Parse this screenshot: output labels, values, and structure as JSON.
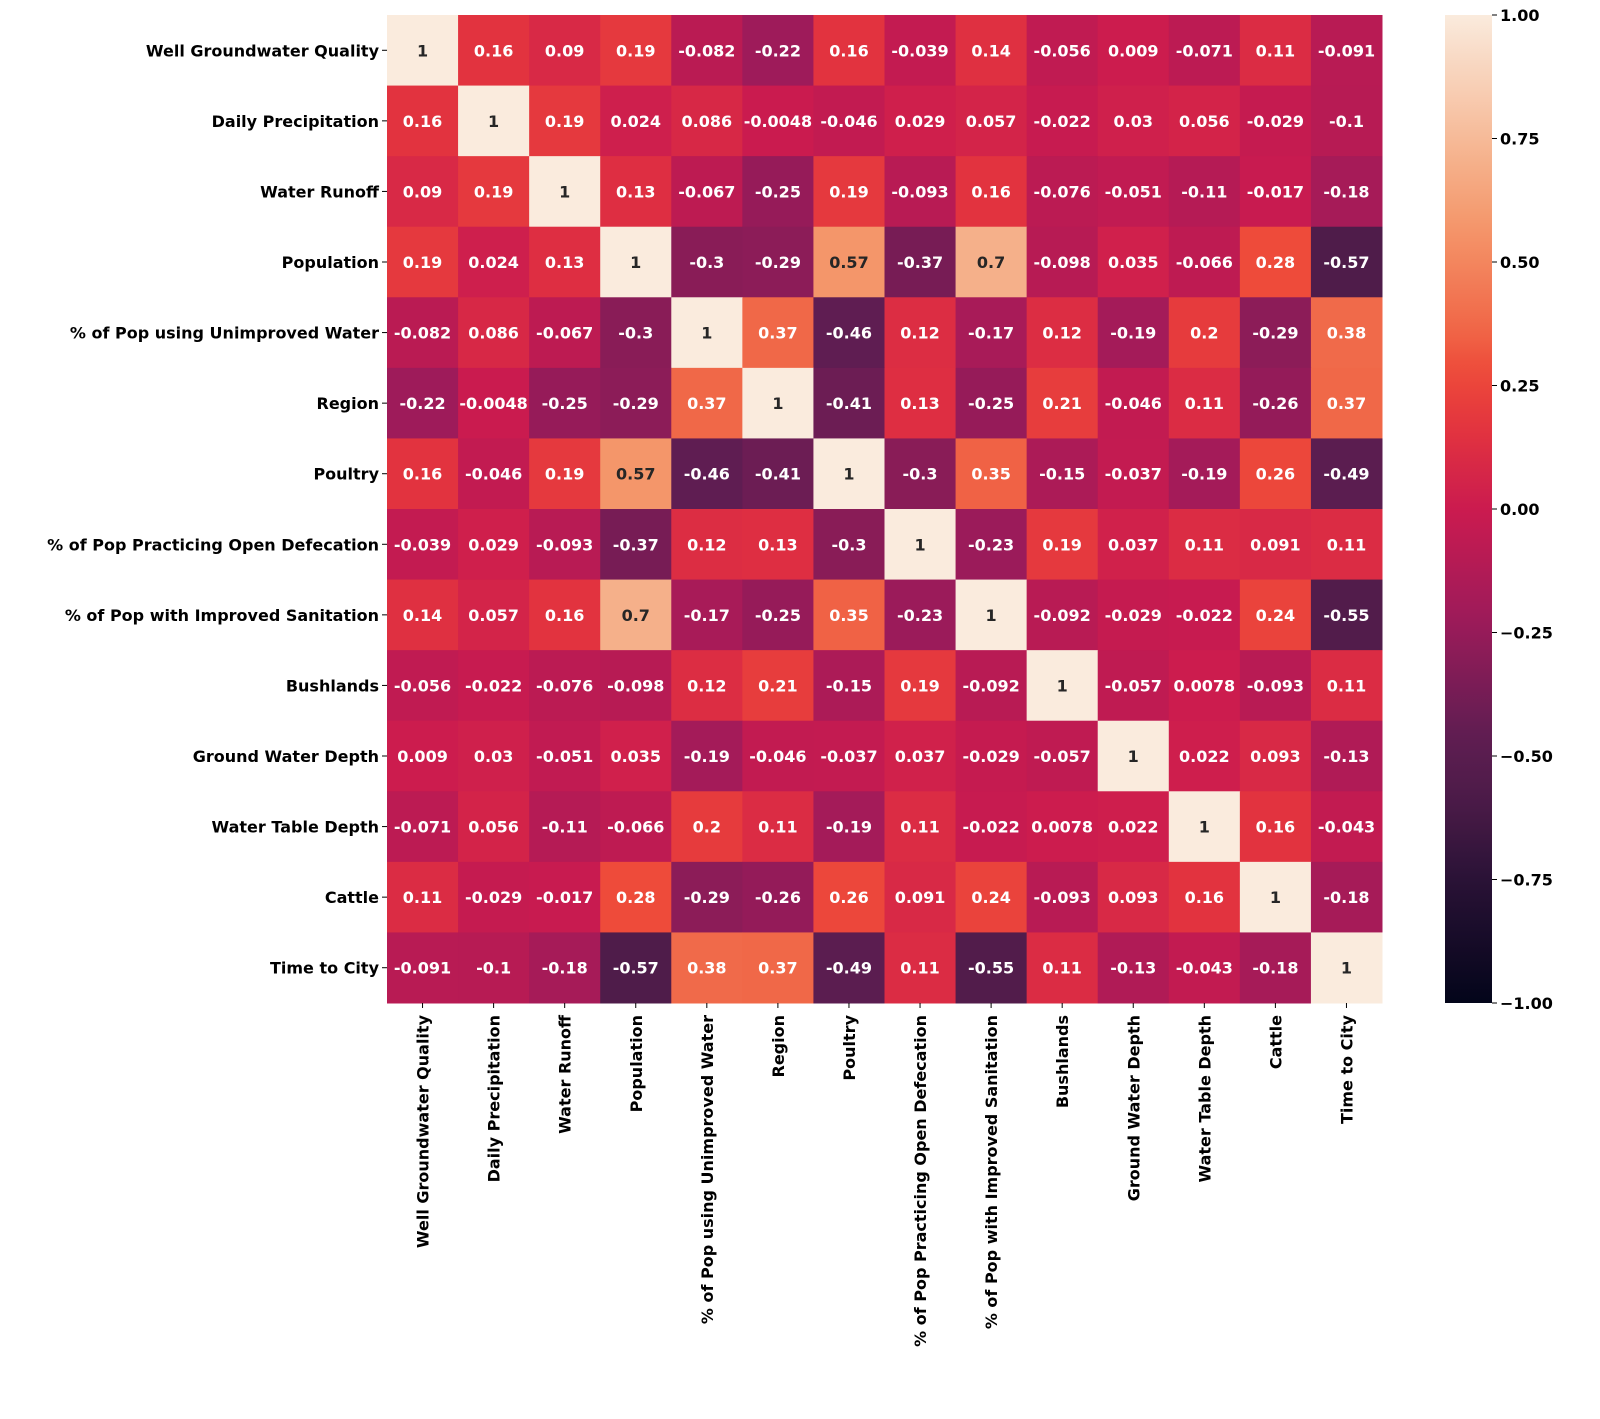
{
  "chart_data": {
    "type": "heatmap",
    "title": "",
    "labels": [
      "Well Groundwater Quality",
      "Daily Precipitation",
      "Water Runoff",
      "Population",
      "% of Pop using Unimproved Water",
      "Region",
      "Poultry",
      "% of Pop Practicing Open Defecation",
      "% of Pop with Improved Sanitation",
      "Bushlands",
      "Ground Water Depth",
      "Water Table Depth",
      "Cattle",
      "Time to City"
    ],
    "values": [
      [
        "1",
        "0.16",
        "0.09",
        "0.19",
        "-0.082",
        "-0.22",
        "0.16",
        "-0.039",
        "0.14",
        "-0.056",
        "0.009",
        "-0.071",
        "0.11",
        "-0.091"
      ],
      [
        "0.16",
        "1",
        "0.19",
        "0.024",
        "0.086",
        "-0.0048",
        "-0.046",
        "0.029",
        "0.057",
        "-0.022",
        "0.03",
        "0.056",
        "-0.029",
        "-0.1"
      ],
      [
        "0.09",
        "0.19",
        "1",
        "0.13",
        "-0.067",
        "-0.25",
        "0.19",
        "-0.093",
        "0.16",
        "-0.076",
        "-0.051",
        "-0.11",
        "-0.017",
        "-0.18"
      ],
      [
        "0.19",
        "0.024",
        "0.13",
        "1",
        "-0.3",
        "-0.29",
        "0.57",
        "-0.37",
        "0.7",
        "-0.098",
        "0.035",
        "-0.066",
        "0.28",
        "-0.57"
      ],
      [
        "-0.082",
        "0.086",
        "-0.067",
        "-0.3",
        "1",
        "0.37",
        "-0.46",
        "0.12",
        "-0.17",
        "0.12",
        "-0.19",
        "0.2",
        "-0.29",
        "0.38"
      ],
      [
        "-0.22",
        "-0.0048",
        "-0.25",
        "-0.29",
        "0.37",
        "1",
        "-0.41",
        "0.13",
        "-0.25",
        "0.21",
        "-0.046",
        "0.11",
        "-0.26",
        "0.37"
      ],
      [
        "0.16",
        "-0.046",
        "0.19",
        "0.57",
        "-0.46",
        "-0.41",
        "1",
        "-0.3",
        "0.35",
        "-0.15",
        "-0.037",
        "-0.19",
        "0.26",
        "-0.49"
      ],
      [
        "-0.039",
        "0.029",
        "-0.093",
        "-0.37",
        "0.12",
        "0.13",
        "-0.3",
        "1",
        "-0.23",
        "0.19",
        "0.037",
        "0.11",
        "0.091",
        "0.11"
      ],
      [
        "0.14",
        "0.057",
        "0.16",
        "0.7",
        "-0.17",
        "-0.25",
        "0.35",
        "-0.23",
        "1",
        "-0.092",
        "-0.029",
        "-0.022",
        "0.24",
        "-0.55"
      ],
      [
        "-0.056",
        "-0.022",
        "-0.076",
        "-0.098",
        "0.12",
        "0.21",
        "-0.15",
        "0.19",
        "-0.092",
        "1",
        "-0.057",
        "0.0078",
        "-0.093",
        "0.11"
      ],
      [
        "0.009",
        "0.03",
        "-0.051",
        "0.035",
        "-0.19",
        "-0.046",
        "-0.037",
        "0.037",
        "-0.029",
        "-0.057",
        "1",
        "0.022",
        "0.093",
        "-0.13"
      ],
      [
        "-0.071",
        "0.056",
        "-0.11",
        "-0.066",
        "0.2",
        "0.11",
        "-0.19",
        "0.11",
        "-0.022",
        "0.0078",
        "0.022",
        "1",
        "0.16",
        "-0.043"
      ],
      [
        "0.11",
        "-0.029",
        "-0.017",
        "0.28",
        "-0.29",
        "-0.26",
        "0.26",
        "0.091",
        "0.24",
        "-0.093",
        "0.093",
        "0.16",
        "1",
        "-0.18"
      ],
      [
        "-0.091",
        "-0.1",
        "-0.18",
        "-0.57",
        "0.38",
        "0.37",
        "-0.49",
        "0.11",
        "-0.55",
        "0.11",
        "-0.13",
        "-0.043",
        "-0.18",
        "1"
      ]
    ],
    "colorbar": {
      "range": [
        -1,
        1
      ],
      "ticks": [
        "1.00",
        "0.75",
        "0.50",
        "0.25",
        "0.00",
        "−0.25",
        "−0.50",
        "−0.75",
        "−1.00"
      ],
      "tick_values": [
        1,
        0.75,
        0.5,
        0.25,
        0,
        -0.25,
        -0.5,
        -0.75,
        -1
      ],
      "colormap": "rocket"
    }
  }
}
